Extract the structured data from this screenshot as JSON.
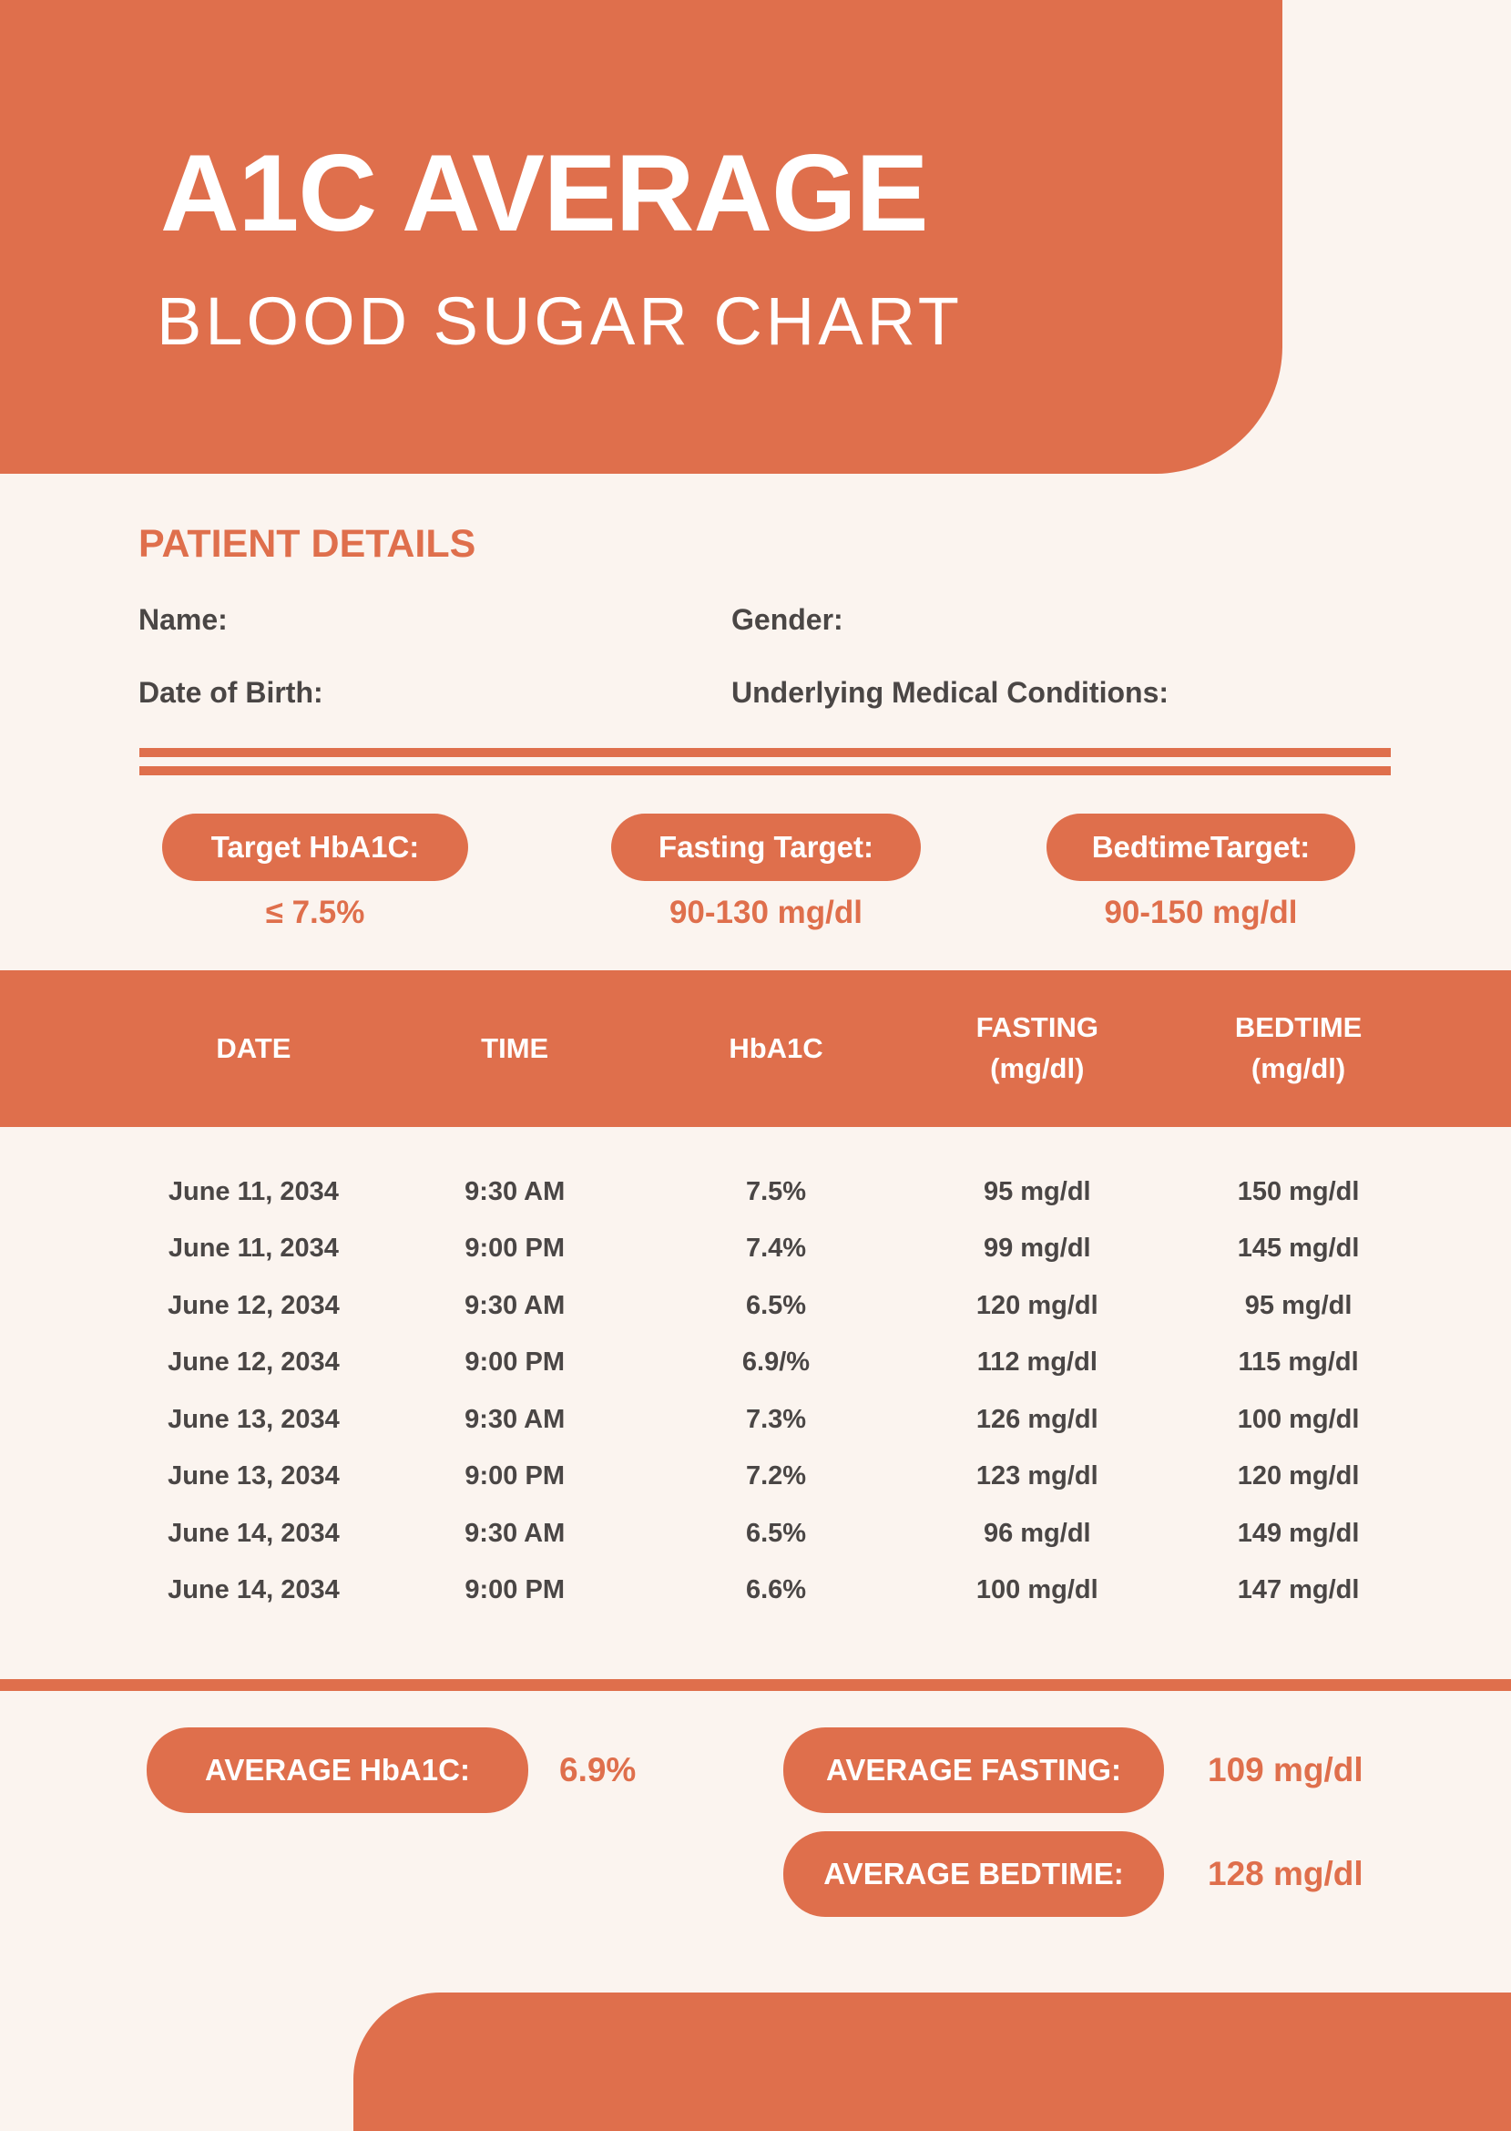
{
  "colors": {
    "accent": "#DF6F4C",
    "background": "#FBF4EF",
    "text_dark": "#4A4645",
    "pill_text": "#FFFFFF"
  },
  "header": {
    "title": "A1C AVERAGE",
    "subtitle": "BLOOD SUGAR CHART"
  },
  "patient_details": {
    "heading": "PATIENT DETAILS",
    "name_label": "Name:",
    "gender_label": "Gender:",
    "dob_label": "Date of Birth:",
    "conditions_label": "Underlying Medical Conditions:"
  },
  "targets": [
    {
      "label": "Target HbA1C:",
      "value": "≤ 7.5%"
    },
    {
      "label": "Fasting Target:",
      "value": "90-130 mg/dl"
    },
    {
      "label": "BedtimeTarget:",
      "value": "90-150 mg/dl"
    }
  ],
  "table": {
    "columns": [
      {
        "line1": "DATE",
        "line2": ""
      },
      {
        "line1": "TIME",
        "line2": ""
      },
      {
        "line1": "HbA1C",
        "line2": ""
      },
      {
        "line1": "FASTING",
        "line2": "(mg/dl)"
      },
      {
        "line1": "BEDTIME",
        "line2": "(mg/dl)"
      }
    ],
    "rows": [
      [
        "June 11, 2034",
        "9:30 AM",
        "7.5%",
        "95 mg/dl",
        "150 mg/dl"
      ],
      [
        "June 11, 2034",
        "9:00 PM",
        "7.4%",
        "99 mg/dl",
        "145 mg/dl"
      ],
      [
        "June 12, 2034",
        "9:30 AM",
        "6.5%",
        "120 mg/dl",
        "95 mg/dl"
      ],
      [
        "June 12, 2034",
        "9:00 PM",
        "6.9/%",
        "112 mg/dl",
        "115 mg/dl"
      ],
      [
        "June 13, 2034",
        "9:30 AM",
        "7.3%",
        "126 mg/dl",
        "100 mg/dl"
      ],
      [
        "June 13, 2034",
        "9:00 PM",
        "7.2%",
        "123 mg/dl",
        "120 mg/dl"
      ],
      [
        "June 14, 2034",
        "9:30 AM",
        "6.5%",
        "96 mg/dl",
        "149 mg/dl"
      ],
      [
        "June 14, 2034",
        "9:00 PM",
        "6.6%",
        "100 mg/dl",
        "147 mg/dl"
      ]
    ]
  },
  "averages": {
    "hba1c": {
      "label": "AVERAGE HbA1C:",
      "value": "6.9%"
    },
    "fasting": {
      "label": "AVERAGE FASTING:",
      "value": "109 mg/dl"
    },
    "bedtime": {
      "label": "AVERAGE BEDTIME:",
      "value": "128 mg/dl"
    }
  }
}
